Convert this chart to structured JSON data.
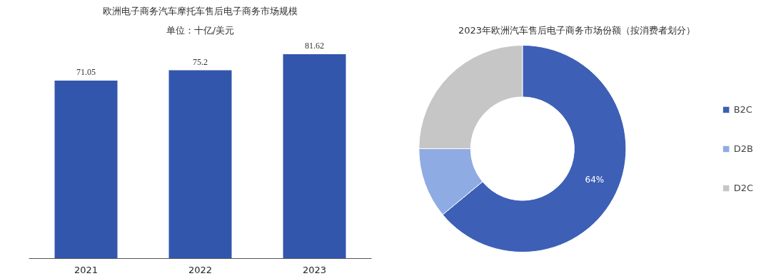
{
  "chart_data": [
    {
      "type": "bar",
      "title": "欧洲电子商务汽车摩托车售后电子商务市场规模",
      "subtitle": "单位：十亿/美元",
      "categories": [
        "2021",
        "2022",
        "2023"
      ],
      "values": [
        71.05,
        75.2,
        81.62
      ],
      "color": "#3356ad",
      "data_labels": true,
      "tick_labels": "x"
    },
    {
      "type": "donut",
      "title": "2023年欧洲汽车售后电子商务市场份额（按消费者划分）",
      "categories": [
        "B2C",
        "D2B",
        "D2C"
      ],
      "values": [
        64,
        11,
        25
      ],
      "colors": [
        "#3d5fb5",
        "#8fabe3",
        "#c6c6c6"
      ],
      "value_labels": [
        "64%",
        null,
        null
      ],
      "legend": "right"
    }
  ]
}
